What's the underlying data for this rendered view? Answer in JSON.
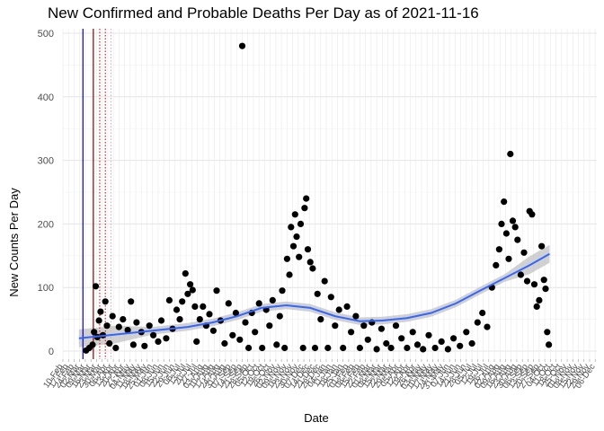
{
  "chart_data": {
    "type": "scatter",
    "title": "New Confirmed and Probable Deaths Per Day as of 2021-11-16",
    "xlabel": "Date",
    "ylabel": "New Counts Per Day",
    "ylim": [
      0,
      500
    ],
    "yticks": [
      0,
      100,
      200,
      300,
      400,
      500
    ],
    "xlim": [
      "2020-02-10",
      "2021-12-08"
    ],
    "grid": true,
    "legend": "none",
    "colors": {
      "points": "#000000",
      "smooth": "#3366ff",
      "band": "#bdbdbd",
      "vline_blue": "#0000cc",
      "vline_darkred": "#8b0000",
      "vline_red_dotted": "#cc0000",
      "vline_pink_dotted": "#e8a0b0",
      "grid": "#ebebeb"
    },
    "vlines": [
      {
        "date": "2020-03-06",
        "style": "solid",
        "color": "blue"
      },
      {
        "date": "2020-03-19",
        "style": "solid",
        "color": "darkred"
      },
      {
        "date": "2020-03-27",
        "style": "dotted",
        "color": "red"
      },
      {
        "date": "2020-04-03",
        "style": "dotted",
        "color": "red"
      },
      {
        "date": "2020-04-10",
        "style": "dotted",
        "color": "pink"
      }
    ],
    "series": [
      {
        "points": [
          [
            "2020-03-10",
            1
          ],
          [
            "2020-03-14",
            5
          ],
          [
            "2020-03-18",
            10
          ],
          [
            "2020-03-20",
            30
          ],
          [
            "2020-03-22",
            102
          ],
          [
            "2020-03-24",
            22
          ],
          [
            "2020-03-26",
            48
          ],
          [
            "2020-03-28",
            62
          ],
          [
            "2020-03-31",
            25
          ],
          [
            "2020-04-03",
            78
          ],
          [
            "2020-04-05",
            40
          ],
          [
            "2020-04-08",
            12
          ],
          [
            "2020-04-12",
            55
          ],
          [
            "2020-04-16",
            5
          ],
          [
            "2020-04-20",
            38
          ],
          [
            "2020-04-25",
            50
          ],
          [
            "2020-05-01",
            33
          ],
          [
            "2020-05-05",
            78
          ],
          [
            "2020-05-08",
            10
          ],
          [
            "2020-05-12",
            45
          ],
          [
            "2020-05-18",
            30
          ],
          [
            "2020-05-22",
            8
          ],
          [
            "2020-05-28",
            40
          ],
          [
            "2020-06-02",
            25
          ],
          [
            "2020-06-08",
            15
          ],
          [
            "2020-06-12",
            48
          ],
          [
            "2020-06-18",
            20
          ],
          [
            "2020-06-22",
            80
          ],
          [
            "2020-06-26",
            35
          ],
          [
            "2020-07-01",
            65
          ],
          [
            "2020-07-05",
            50
          ],
          [
            "2020-07-08",
            78
          ],
          [
            "2020-07-12",
            122
          ],
          [
            "2020-07-15",
            90
          ],
          [
            "2020-07-18",
            105
          ],
          [
            "2020-07-21",
            96
          ],
          [
            "2020-07-24",
            70
          ],
          [
            "2020-07-26",
            15
          ],
          [
            "2020-07-30",
            50
          ],
          [
            "2020-08-03",
            70
          ],
          [
            "2020-08-07",
            40
          ],
          [
            "2020-08-11",
            58
          ],
          [
            "2020-08-16",
            32
          ],
          [
            "2020-08-20",
            95
          ],
          [
            "2020-08-25",
            48
          ],
          [
            "2020-08-30",
            12
          ],
          [
            "2020-09-04",
            75
          ],
          [
            "2020-09-09",
            25
          ],
          [
            "2020-09-13",
            60
          ],
          [
            "2020-09-18",
            18
          ],
          [
            "2020-09-21",
            480
          ],
          [
            "2020-09-25",
            45
          ],
          [
            "2020-09-29",
            5
          ],
          [
            "2020-10-03",
            60
          ],
          [
            "2020-10-07",
            30
          ],
          [
            "2020-10-12",
            75
          ],
          [
            "2020-10-16",
            5
          ],
          [
            "2020-10-21",
            65
          ],
          [
            "2020-10-25",
            40
          ],
          [
            "2020-10-29",
            80
          ],
          [
            "2020-11-03",
            10
          ],
          [
            "2020-11-07",
            55
          ],
          [
            "2020-11-10",
            95
          ],
          [
            "2020-11-13",
            5
          ],
          [
            "2020-11-16",
            145
          ],
          [
            "2020-11-19",
            120
          ],
          [
            "2020-11-21",
            195
          ],
          [
            "2020-11-24",
            165
          ],
          [
            "2020-11-26",
            215
          ],
          [
            "2020-11-28",
            180
          ],
          [
            "2020-12-01",
            148
          ],
          [
            "2020-12-03",
            200
          ],
          [
            "2020-12-06",
            5
          ],
          [
            "2020-12-08",
            225
          ],
          [
            "2020-12-10",
            240
          ],
          [
            "2020-12-12",
            160
          ],
          [
            "2020-12-15",
            140
          ],
          [
            "2020-12-18",
            130
          ],
          [
            "2020-12-21",
            5
          ],
          [
            "2020-12-24",
            90
          ],
          [
            "2020-12-28",
            50
          ],
          [
            "2021-01-02",
            110
          ],
          [
            "2021-01-06",
            5
          ],
          [
            "2021-01-10",
            85
          ],
          [
            "2021-01-15",
            40
          ],
          [
            "2021-01-20",
            65
          ],
          [
            "2021-01-25",
            5
          ],
          [
            "2021-01-30",
            70
          ],
          [
            "2021-02-04",
            30
          ],
          [
            "2021-02-10",
            55
          ],
          [
            "2021-02-15",
            5
          ],
          [
            "2021-02-20",
            40
          ],
          [
            "2021-02-25",
            18
          ],
          [
            "2021-03-02",
            45
          ],
          [
            "2021-03-08",
            3
          ],
          [
            "2021-03-14",
            35
          ],
          [
            "2021-03-20",
            12
          ],
          [
            "2021-03-26",
            5
          ],
          [
            "2021-04-01",
            40
          ],
          [
            "2021-04-08",
            20
          ],
          [
            "2021-04-15",
            5
          ],
          [
            "2021-04-22",
            30
          ],
          [
            "2021-04-28",
            10
          ],
          [
            "2021-05-05",
            3
          ],
          [
            "2021-05-12",
            25
          ],
          [
            "2021-05-20",
            5
          ],
          [
            "2021-05-28",
            15
          ],
          [
            "2021-06-05",
            3
          ],
          [
            "2021-06-12",
            20
          ],
          [
            "2021-06-20",
            8
          ],
          [
            "2021-06-28",
            30
          ],
          [
            "2021-07-05",
            12
          ],
          [
            "2021-07-12",
            45
          ],
          [
            "2021-07-18",
            60
          ],
          [
            "2021-07-24",
            38
          ],
          [
            "2021-07-30",
            100
          ],
          [
            "2021-08-04",
            135
          ],
          [
            "2021-08-08",
            160
          ],
          [
            "2021-08-11",
            200
          ],
          [
            "2021-08-14",
            235
          ],
          [
            "2021-08-17",
            185
          ],
          [
            "2021-08-20",
            145
          ],
          [
            "2021-08-22",
            310
          ],
          [
            "2021-08-25",
            205
          ],
          [
            "2021-08-28",
            195
          ],
          [
            "2021-08-31",
            175
          ],
          [
            "2021-09-04",
            120
          ],
          [
            "2021-09-08",
            155
          ],
          [
            "2021-09-12",
            110
          ],
          [
            "2021-09-15",
            220
          ],
          [
            "2021-09-18",
            215
          ],
          [
            "2021-09-21",
            105
          ],
          [
            "2021-09-24",
            70
          ],
          [
            "2021-09-27",
            80
          ],
          [
            "2021-09-30",
            165
          ],
          [
            "2021-10-03",
            112
          ],
          [
            "2021-10-05",
            98
          ],
          [
            "2021-10-07",
            30
          ],
          [
            "2021-10-09",
            10
          ]
        ]
      }
    ],
    "smooth": [
      [
        "2020-03-01",
        20
      ],
      [
        "2020-04-15",
        26
      ],
      [
        "2020-06-01",
        32
      ],
      [
        "2020-07-15",
        38
      ],
      [
        "2020-08-15",
        45
      ],
      [
        "2020-09-15",
        55
      ],
      [
        "2020-10-15",
        68
      ],
      [
        "2020-11-15",
        72
      ],
      [
        "2020-12-15",
        68
      ],
      [
        "2021-01-15",
        55
      ],
      [
        "2021-02-15",
        47
      ],
      [
        "2021-03-15",
        48
      ],
      [
        "2021-04-15",
        52
      ],
      [
        "2021-05-15",
        60
      ],
      [
        "2021-06-15",
        75
      ],
      [
        "2021-07-15",
        95
      ],
      [
        "2021-08-15",
        115
      ],
      [
        "2021-09-15",
        135
      ],
      [
        "2021-10-10",
        153
      ]
    ]
  }
}
